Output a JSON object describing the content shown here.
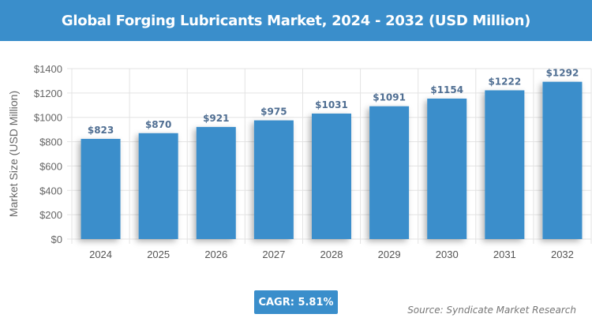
{
  "chart_data": {
    "type": "bar",
    "title": "Global Forging Lubricants Market, 2024 - 2032 (USD Million)",
    "xlabel": "",
    "ylabel": "Market Size (USD Million)",
    "categories": [
      "2024",
      "2025",
      "2026",
      "2027",
      "2028",
      "2029",
      "2030",
      "2031",
      "2032"
    ],
    "values": [
      823,
      870,
      921,
      975,
      1031,
      1091,
      1154,
      1222,
      1292
    ],
    "data_labels": [
      "$823",
      "$870",
      "$921",
      "$975",
      "$1031",
      "$1091",
      "$1154",
      "$1222",
      "$1292"
    ],
    "ylim": [
      0,
      1400
    ],
    "yticks": [
      0,
      200,
      400,
      600,
      800,
      1000,
      1200,
      1400
    ],
    "ytick_labels": [
      "$0",
      "$200",
      "$400",
      "$600",
      "$800",
      "$1000",
      "$1200",
      "$1400"
    ],
    "grid": true,
    "bar_color": "#3a8ecb",
    "label_color": "#4f6e92"
  },
  "cagr": "CAGR: 5.81%",
  "source": "Source: Syndicate Market Research"
}
